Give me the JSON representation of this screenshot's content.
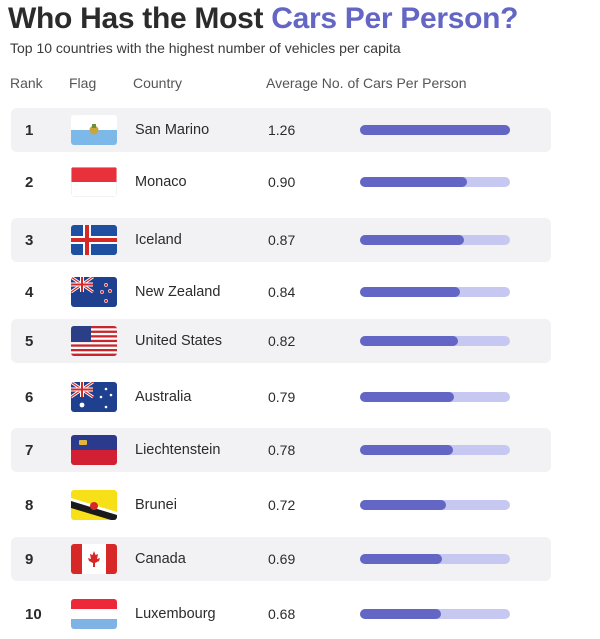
{
  "header": {
    "title_main": "Who Has the Most ",
    "title_accent": "Cars Per Person?",
    "subtitle": "Top 10 countries with the highest number of vehicles per capita"
  },
  "columns": {
    "rank": "Rank",
    "flag": "Flag",
    "country": "Country",
    "average": "Average No. of Cars Per Person"
  },
  "colors": {
    "accent": "#6366c4",
    "bar_fill": "#6366c4",
    "bar_track": "#c7c8f2",
    "row_shade": "#f2f2f4"
  },
  "chart_data": {
    "type": "bar",
    "orientation": "horizontal",
    "title": "Who Has the Most Cars Per Person?",
    "subtitle": "Top 10 countries with the highest number of vehicles per capita",
    "ylabel": "Average No. of Cars Per Person",
    "xlim": [
      0,
      1.26
    ],
    "categories": [
      "San Marino",
      "Monaco",
      "Iceland",
      "New Zealand",
      "United States",
      "Australia",
      "Liechtenstein",
      "Brunei",
      "Canada",
      "Luxembourg"
    ],
    "ranks": [
      "1",
      "2",
      "3",
      "4",
      "5",
      "6",
      "7",
      "8",
      "9",
      "10"
    ],
    "value_labels": [
      "1.26",
      "0.90",
      "0.87",
      "0.84",
      "0.82",
      "0.79",
      "0.78",
      "0.72",
      "0.69",
      "0.68"
    ],
    "values": [
      1.26,
      0.9,
      0.87,
      0.84,
      0.82,
      0.79,
      0.78,
      0.72,
      0.69,
      0.68
    ],
    "flag_icons": [
      "san-marino-flag-icon",
      "monaco-flag-icon",
      "iceland-flag-icon",
      "new-zealand-flag-icon",
      "united-states-flag-icon",
      "australia-flag-icon",
      "liechtenstein-flag-icon",
      "brunei-flag-icon",
      "canada-flag-icon",
      "luxembourg-flag-icon"
    ]
  }
}
